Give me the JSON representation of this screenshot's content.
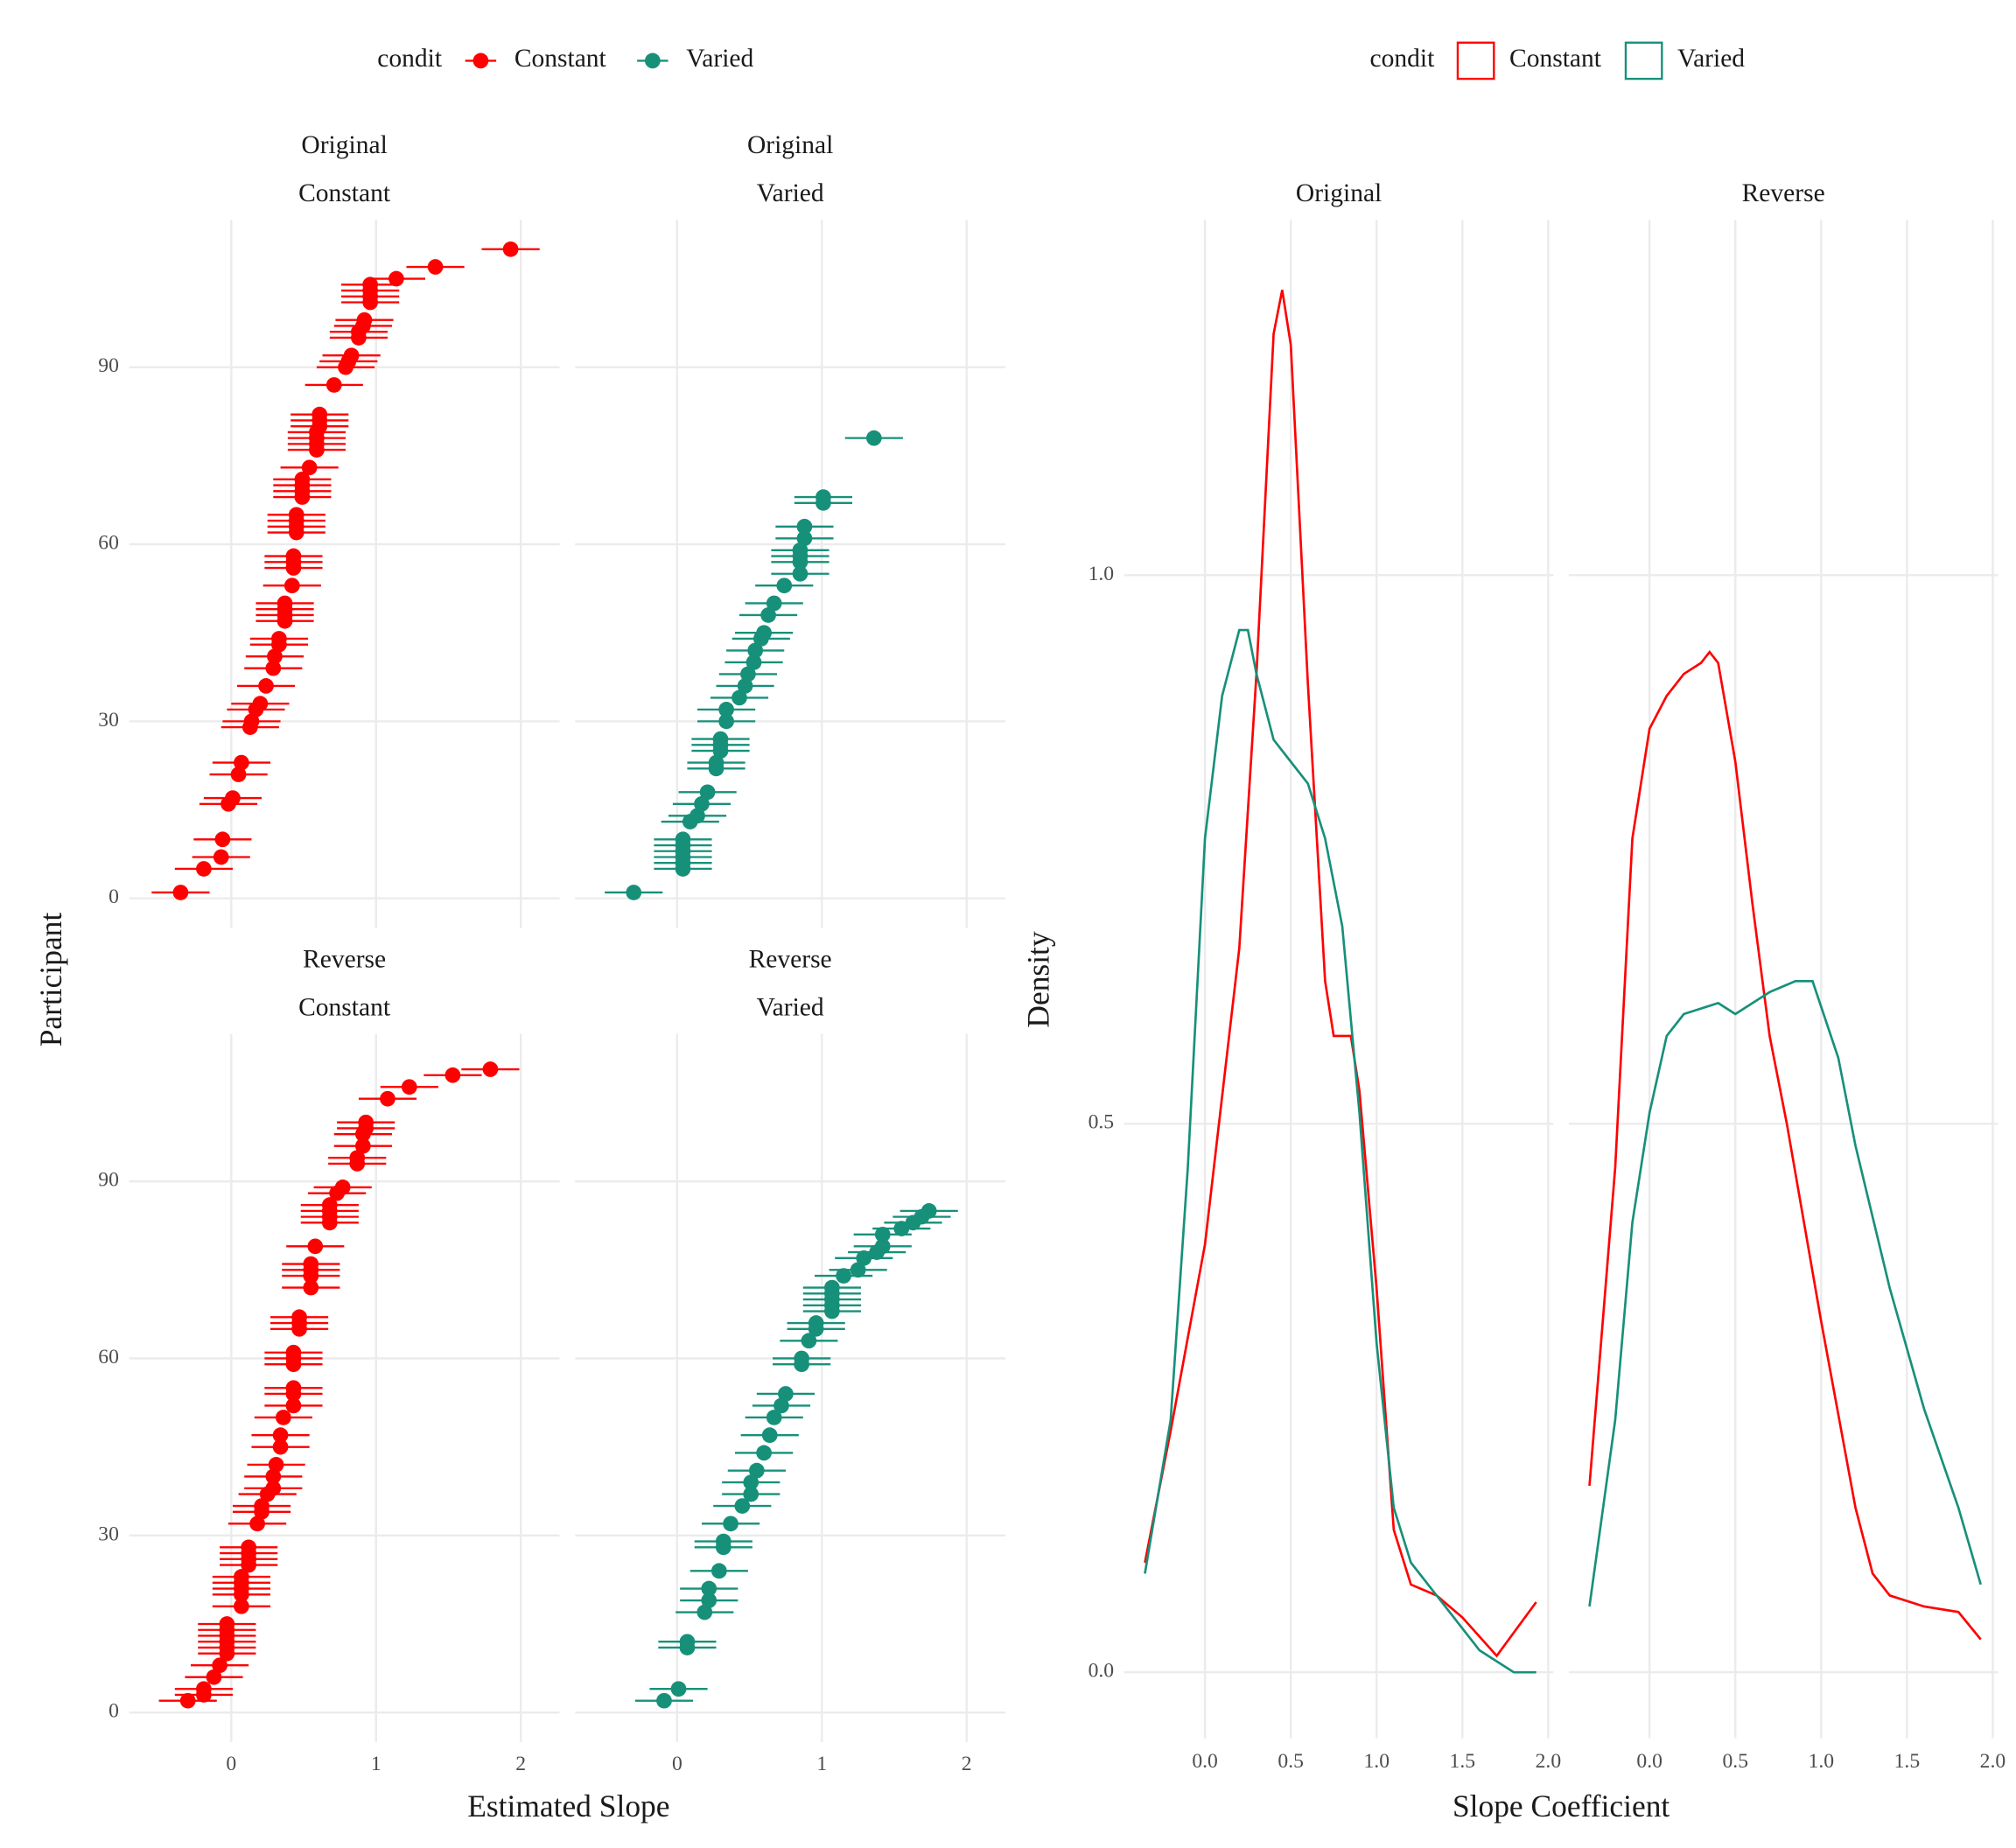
{
  "chart_data": [
    {
      "type": "errorbar",
      "xlabel": "Estimated Slope",
      "ylabel": "Participant",
      "legend_title": "condit",
      "legend_position": "top",
      "series": [
        {
          "name": "Constant",
          "color": "#ff0000"
        },
        {
          "name": "Varied",
          "color": "#17907a"
        }
      ],
      "xlim": [
        -0.705,
        2.268
      ],
      "ylim": [
        -5,
        115
      ],
      "xticks": [
        0,
        1,
        2
      ],
      "yticks": [
        0,
        30,
        60,
        90
      ],
      "grid": true,
      "panels": [
        {
          "strip": [
            "Original",
            "Constant"
          ],
          "color": "#ff0000",
          "x": [
            1.93,
            1.41,
            1.14,
            0.96,
            0.96,
            0.96,
            0.96,
            0.92,
            0.91,
            0.88,
            0.88,
            0.83,
            0.81,
            0.79,
            0.71,
            0.61,
            0.61,
            0.61,
            0.59,
            0.59,
            0.59,
            0.59,
            0.54,
            0.49,
            0.49,
            0.49,
            0.49,
            0.45,
            0.45,
            0.45,
            0.45,
            0.43,
            0.43,
            0.43,
            0.42,
            0.37,
            0.37,
            0.37,
            0.37,
            0.33,
            0.33,
            0.3,
            0.29,
            0.24,
            0.2,
            0.17,
            0.14,
            0.13,
            0.07,
            0.05,
            0.01,
            -0.02,
            -0.06,
            -0.07,
            -0.19,
            -0.35
          ],
          "y": [
            110,
            107,
            105,
            104,
            103,
            102,
            101,
            98,
            97,
            96,
            95,
            92,
            91,
            90,
            87,
            82,
            81,
            80,
            79,
            78,
            77,
            76,
            73,
            71,
            70,
            69,
            68,
            65,
            64,
            63,
            62,
            58,
            57,
            56,
            53,
            50,
            49,
            48,
            47,
            44,
            43,
            41,
            39,
            36,
            33,
            32,
            30,
            29,
            23,
            21,
            17,
            16,
            10,
            7,
            5,
            1
          ],
          "error": [
            0.2,
            0.2,
            0.2,
            0.2,
            0.2,
            0.2,
            0.2,
            0.2,
            0.2,
            0.2,
            0.2,
            0.2,
            0.2,
            0.2,
            0.2,
            0.2,
            0.2,
            0.2,
            0.2,
            0.2,
            0.2,
            0.2,
            0.2,
            0.2,
            0.2,
            0.2,
            0.2,
            0.2,
            0.2,
            0.2,
            0.2,
            0.2,
            0.2,
            0.2,
            0.2,
            0.2,
            0.2,
            0.2,
            0.2,
            0.2,
            0.2,
            0.2,
            0.2,
            0.2,
            0.2,
            0.2,
            0.2,
            0.2,
            0.2,
            0.2,
            0.2,
            0.2,
            0.2,
            0.2,
            0.2,
            0.2
          ]
        },
        {
          "strip": [
            "Original",
            "Varied"
          ],
          "color": "#17907a",
          "x": [
            1.36,
            1.01,
            1.01,
            0.88,
            0.88,
            0.85,
            0.85,
            0.85,
            0.85,
            0.74,
            0.67,
            0.63,
            0.6,
            0.58,
            0.54,
            0.53,
            0.49,
            0.47,
            0.43,
            0.34,
            0.34,
            0.3,
            0.3,
            0.3,
            0.27,
            0.27,
            0.21,
            0.17,
            0.14,
            0.09,
            0.04,
            0.04,
            0.04,
            0.04,
            0.04,
            0.04,
            -0.3
          ],
          "y": [
            78,
            68,
            67,
            63,
            61,
            59,
            58,
            57,
            55,
            53,
            50,
            48,
            45,
            44,
            42,
            40,
            38,
            36,
            34,
            32,
            30,
            27,
            26,
            25,
            23,
            22,
            18,
            16,
            14,
            13,
            10,
            9,
            8,
            7,
            6,
            5,
            1
          ],
          "error": [
            0.2,
            0.2,
            0.2,
            0.2,
            0.2,
            0.2,
            0.2,
            0.2,
            0.2,
            0.2,
            0.2,
            0.2,
            0.2,
            0.2,
            0.2,
            0.2,
            0.2,
            0.2,
            0.2,
            0.2,
            0.2,
            0.2,
            0.2,
            0.2,
            0.2,
            0.2,
            0.2,
            0.2,
            0.2,
            0.2,
            0.2,
            0.2,
            0.2,
            0.2,
            0.2,
            0.2,
            0.2
          ]
        },
        {
          "strip": [
            "Reverse",
            "Constant"
          ],
          "color": "#ff0000",
          "x": [
            1.79,
            1.53,
            1.23,
            1.08,
            0.93,
            0.93,
            0.91,
            0.91,
            0.87,
            0.87,
            0.77,
            0.73,
            0.68,
            0.68,
            0.68,
            0.68,
            0.58,
            0.55,
            0.55,
            0.55,
            0.55,
            0.47,
            0.47,
            0.47,
            0.43,
            0.43,
            0.43,
            0.43,
            0.43,
            0.43,
            0.36,
            0.34,
            0.34,
            0.31,
            0.29,
            0.29,
            0.25,
            0.21,
            0.21,
            0.18,
            0.12,
            0.12,
            0.12,
            0.12,
            0.07,
            0.07,
            0.07,
            0.07,
            0.07,
            -0.03,
            -0.03,
            -0.03,
            -0.03,
            -0.03,
            -0.03,
            -0.08,
            -0.12,
            -0.19,
            -0.19,
            -0.3
          ],
          "y": [
            109,
            108,
            106,
            104,
            100,
            99,
            98,
            96,
            94,
            93,
            89,
            88,
            86,
            85,
            84,
            83,
            79,
            76,
            75,
            74,
            72,
            67,
            66,
            65,
            61,
            60,
            59,
            55,
            54,
            52,
            50,
            47,
            45,
            42,
            40,
            38,
            37,
            35,
            34,
            32,
            28,
            27,
            26,
            25,
            23,
            22,
            21,
            20,
            18,
            15,
            14,
            13,
            12,
            11,
            10,
            8,
            6,
            4,
            3,
            2
          ],
          "error": [
            0.2,
            0.2,
            0.2,
            0.2,
            0.2,
            0.2,
            0.2,
            0.2,
            0.2,
            0.2,
            0.2,
            0.2,
            0.2,
            0.2,
            0.2,
            0.2,
            0.2,
            0.2,
            0.2,
            0.2,
            0.2,
            0.2,
            0.2,
            0.2,
            0.2,
            0.2,
            0.2,
            0.2,
            0.2,
            0.2,
            0.2,
            0.2,
            0.2,
            0.2,
            0.2,
            0.2,
            0.2,
            0.2,
            0.2,
            0.2,
            0.2,
            0.2,
            0.2,
            0.2,
            0.2,
            0.2,
            0.2,
            0.2,
            0.2,
            0.2,
            0.2,
            0.2,
            0.2,
            0.2,
            0.2,
            0.2,
            0.2,
            0.2,
            0.2,
            0.2
          ]
        },
        {
          "strip": [
            "Reverse",
            "Varied"
          ],
          "color": "#17907a",
          "x": [
            1.74,
            1.69,
            1.63,
            1.55,
            1.42,
            1.42,
            1.38,
            1.29,
            1.25,
            1.15,
            1.07,
            1.07,
            1.07,
            1.07,
            1.07,
            0.96,
            0.96,
            0.91,
            0.86,
            0.86,
            0.75,
            0.72,
            0.67,
            0.64,
            0.6,
            0.55,
            0.51,
            0.51,
            0.45,
            0.37,
            0.32,
            0.32,
            0.29,
            0.22,
            0.22,
            0.19,
            0.07,
            0.07,
            0.01,
            -0.09
          ],
          "y": [
            85,
            84,
            83,
            82,
            81,
            79,
            78,
            77,
            75,
            74,
            72,
            71,
            70,
            69,
            68,
            66,
            65,
            63,
            60,
            59,
            54,
            52,
            50,
            47,
            44,
            41,
            39,
            37,
            35,
            32,
            29,
            28,
            24,
            21,
            19,
            17,
            12,
            11,
            4,
            2
          ],
          "error": [
            0.2,
            0.2,
            0.2,
            0.2,
            0.2,
            0.2,
            0.2,
            0.2,
            0.2,
            0.2,
            0.2,
            0.2,
            0.2,
            0.2,
            0.2,
            0.2,
            0.2,
            0.2,
            0.2,
            0.2,
            0.2,
            0.2,
            0.2,
            0.2,
            0.2,
            0.2,
            0.2,
            0.2,
            0.2,
            0.2,
            0.2,
            0.2,
            0.2,
            0.2,
            0.2,
            0.2,
            0.2,
            0.2,
            0.2,
            0.2
          ]
        }
      ]
    },
    {
      "type": "density",
      "xlabel": "Slope Coefficient",
      "ylabel": "Density",
      "legend_title": "condit",
      "legend_position": "top",
      "series": [
        {
          "name": "Constant",
          "color": "#ff0000"
        },
        {
          "name": "Varied",
          "color": "#17907a"
        }
      ],
      "xlim": [
        -0.47,
        2.03
      ],
      "ylim": [
        -0.06,
        1.324
      ],
      "xticks": [
        {
          "value": 0,
          "label": "0.0"
        },
        {
          "value": 0.5,
          "label": "0.5"
        },
        {
          "value": 1,
          "label": "1.0"
        },
        {
          "value": 1.5,
          "label": "1.5"
        },
        {
          "value": 2,
          "label": "2.0"
        }
      ],
      "yticks": [
        {
          "value": 0,
          "label": "0.0"
        },
        {
          "value": 0.5,
          "label": "0.5"
        },
        {
          "value": 1,
          "label": "1.0"
        }
      ],
      "grid": true,
      "panels": [
        {
          "strip": "Original",
          "curves": [
            {
              "color": "#ff0000",
              "x": [
                -0.35,
                -0.2,
                0,
                0.2,
                0.3,
                0.4,
                0.45,
                0.5,
                0.6,
                0.7,
                0.75,
                0.85,
                0.9,
                1.0,
                1.1,
                1.2,
                1.35,
                1.5,
                1.7,
                1.93
              ],
              "values": [
                0.1,
                0.22,
                0.39,
                0.66,
                0.91,
                1.22,
                1.26,
                1.21,
                0.9,
                0.63,
                0.58,
                0.58,
                0.53,
                0.35,
                0.13,
                0.08,
                0.07,
                0.05,
                0.015,
                0.064
              ]
            },
            {
              "color": "#17907a",
              "x": [
                -0.35,
                -0.2,
                -0.1,
                0,
                0.1,
                0.2,
                0.25,
                0.3,
                0.4,
                0.5,
                0.6,
                0.7,
                0.8,
                0.9,
                1.0,
                1.1,
                1.2,
                1.4,
                1.6,
                1.8,
                1.93
              ],
              "values": [
                0.09,
                0.23,
                0.46,
                0.76,
                0.89,
                0.95,
                0.95,
                0.91,
                0.85,
                0.83,
                0.81,
                0.76,
                0.68,
                0.51,
                0.3,
                0.15,
                0.1,
                0.06,
                0.02,
                0.0,
                0.0
              ]
            }
          ]
        },
        {
          "strip": "Reverse",
          "curves": [
            {
              "color": "#ff0000",
              "x": [
                -0.35,
                -0.2,
                -0.1,
                0,
                0.1,
                0.2,
                0.3,
                0.35,
                0.4,
                0.5,
                0.6,
                0.7,
                0.8,
                1.0,
                1.2,
                1.3,
                1.4,
                1.6,
                1.8,
                1.93
              ],
              "values": [
                0.17,
                0.46,
                0.76,
                0.86,
                0.89,
                0.91,
                0.92,
                0.93,
                0.92,
                0.83,
                0.7,
                0.58,
                0.5,
                0.32,
                0.15,
                0.09,
                0.07,
                0.06,
                0.055,
                0.03
              ]
            },
            {
              "color": "#17907a",
              "x": [
                -0.35,
                -0.2,
                -0.1,
                0,
                0.1,
                0.2,
                0.4,
                0.5,
                0.6,
                0.7,
                0.85,
                0.95,
                1.1,
                1.2,
                1.4,
                1.6,
                1.8,
                1.93
              ],
              "values": [
                0.06,
                0.23,
                0.41,
                0.51,
                0.58,
                0.6,
                0.61,
                0.6,
                0.61,
                0.62,
                0.63,
                0.63,
                0.56,
                0.48,
                0.35,
                0.24,
                0.15,
                0.08
              ]
            }
          ]
        }
      ]
    }
  ]
}
